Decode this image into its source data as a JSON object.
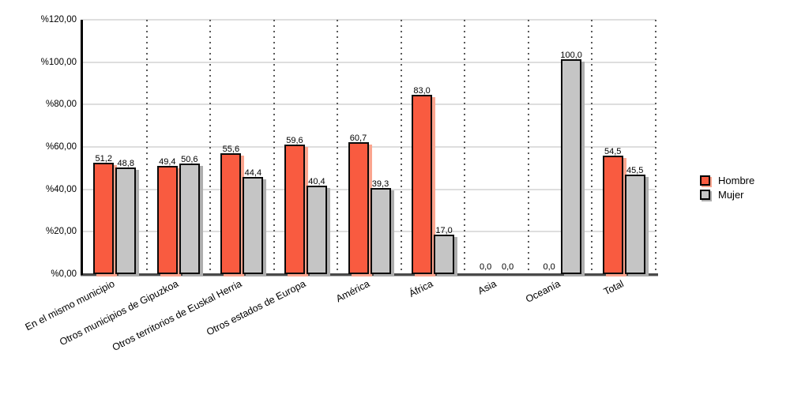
{
  "chart_data": {
    "type": "bar",
    "title": "",
    "xlabel": "",
    "ylabel": "",
    "categories": [
      "En el mismo municipio",
      "Otros municipios de Gipuzkoa",
      "Otros territorios de Euskal Herria",
      "Otros estados de Europa",
      "América",
      "África",
      "Asia",
      "Oceanía",
      "Total"
    ],
    "series": [
      {
        "name": "Hombre",
        "color": "#f95b40",
        "shadow_color": "#fba58f",
        "values": [
          51.2,
          49.4,
          55.6,
          59.6,
          60.7,
          83.0,
          0.0,
          0.0,
          54.5
        ],
        "labels": [
          "51,2",
          "49,4",
          "55,6",
          "59,6",
          "60,7",
          "83,0",
          "0,0",
          "0,0",
          "54,5"
        ]
      },
      {
        "name": "Mujer",
        "color": "#c5c5c5",
        "shadow_color": "#aeaeae",
        "values": [
          48.8,
          50.6,
          44.4,
          40.4,
          39.3,
          17.0,
          0.0,
          100.0,
          45.5
        ],
        "labels": [
          "48,8",
          "50,6",
          "44,4",
          "40,4",
          "39,3",
          "17,0",
          "0,0",
          "100,0",
          "45,5"
        ]
      }
    ],
    "ylim": [
      0,
      120
    ],
    "y_ticks": [
      {
        "value": 120,
        "label": "%120,00"
      },
      {
        "value": 100,
        "label": "%100,00"
      },
      {
        "value": 80,
        "label": "%80,00"
      },
      {
        "value": 60,
        "label": "%60,00"
      },
      {
        "value": 40,
        "label": "%40,00"
      },
      {
        "value": 20,
        "label": "%20,00"
      },
      {
        "value": 0,
        "label": "%0,00"
      }
    ],
    "grid": "horizontal solid + vertical dotted category separators",
    "legend_position": "right-middle"
  }
}
